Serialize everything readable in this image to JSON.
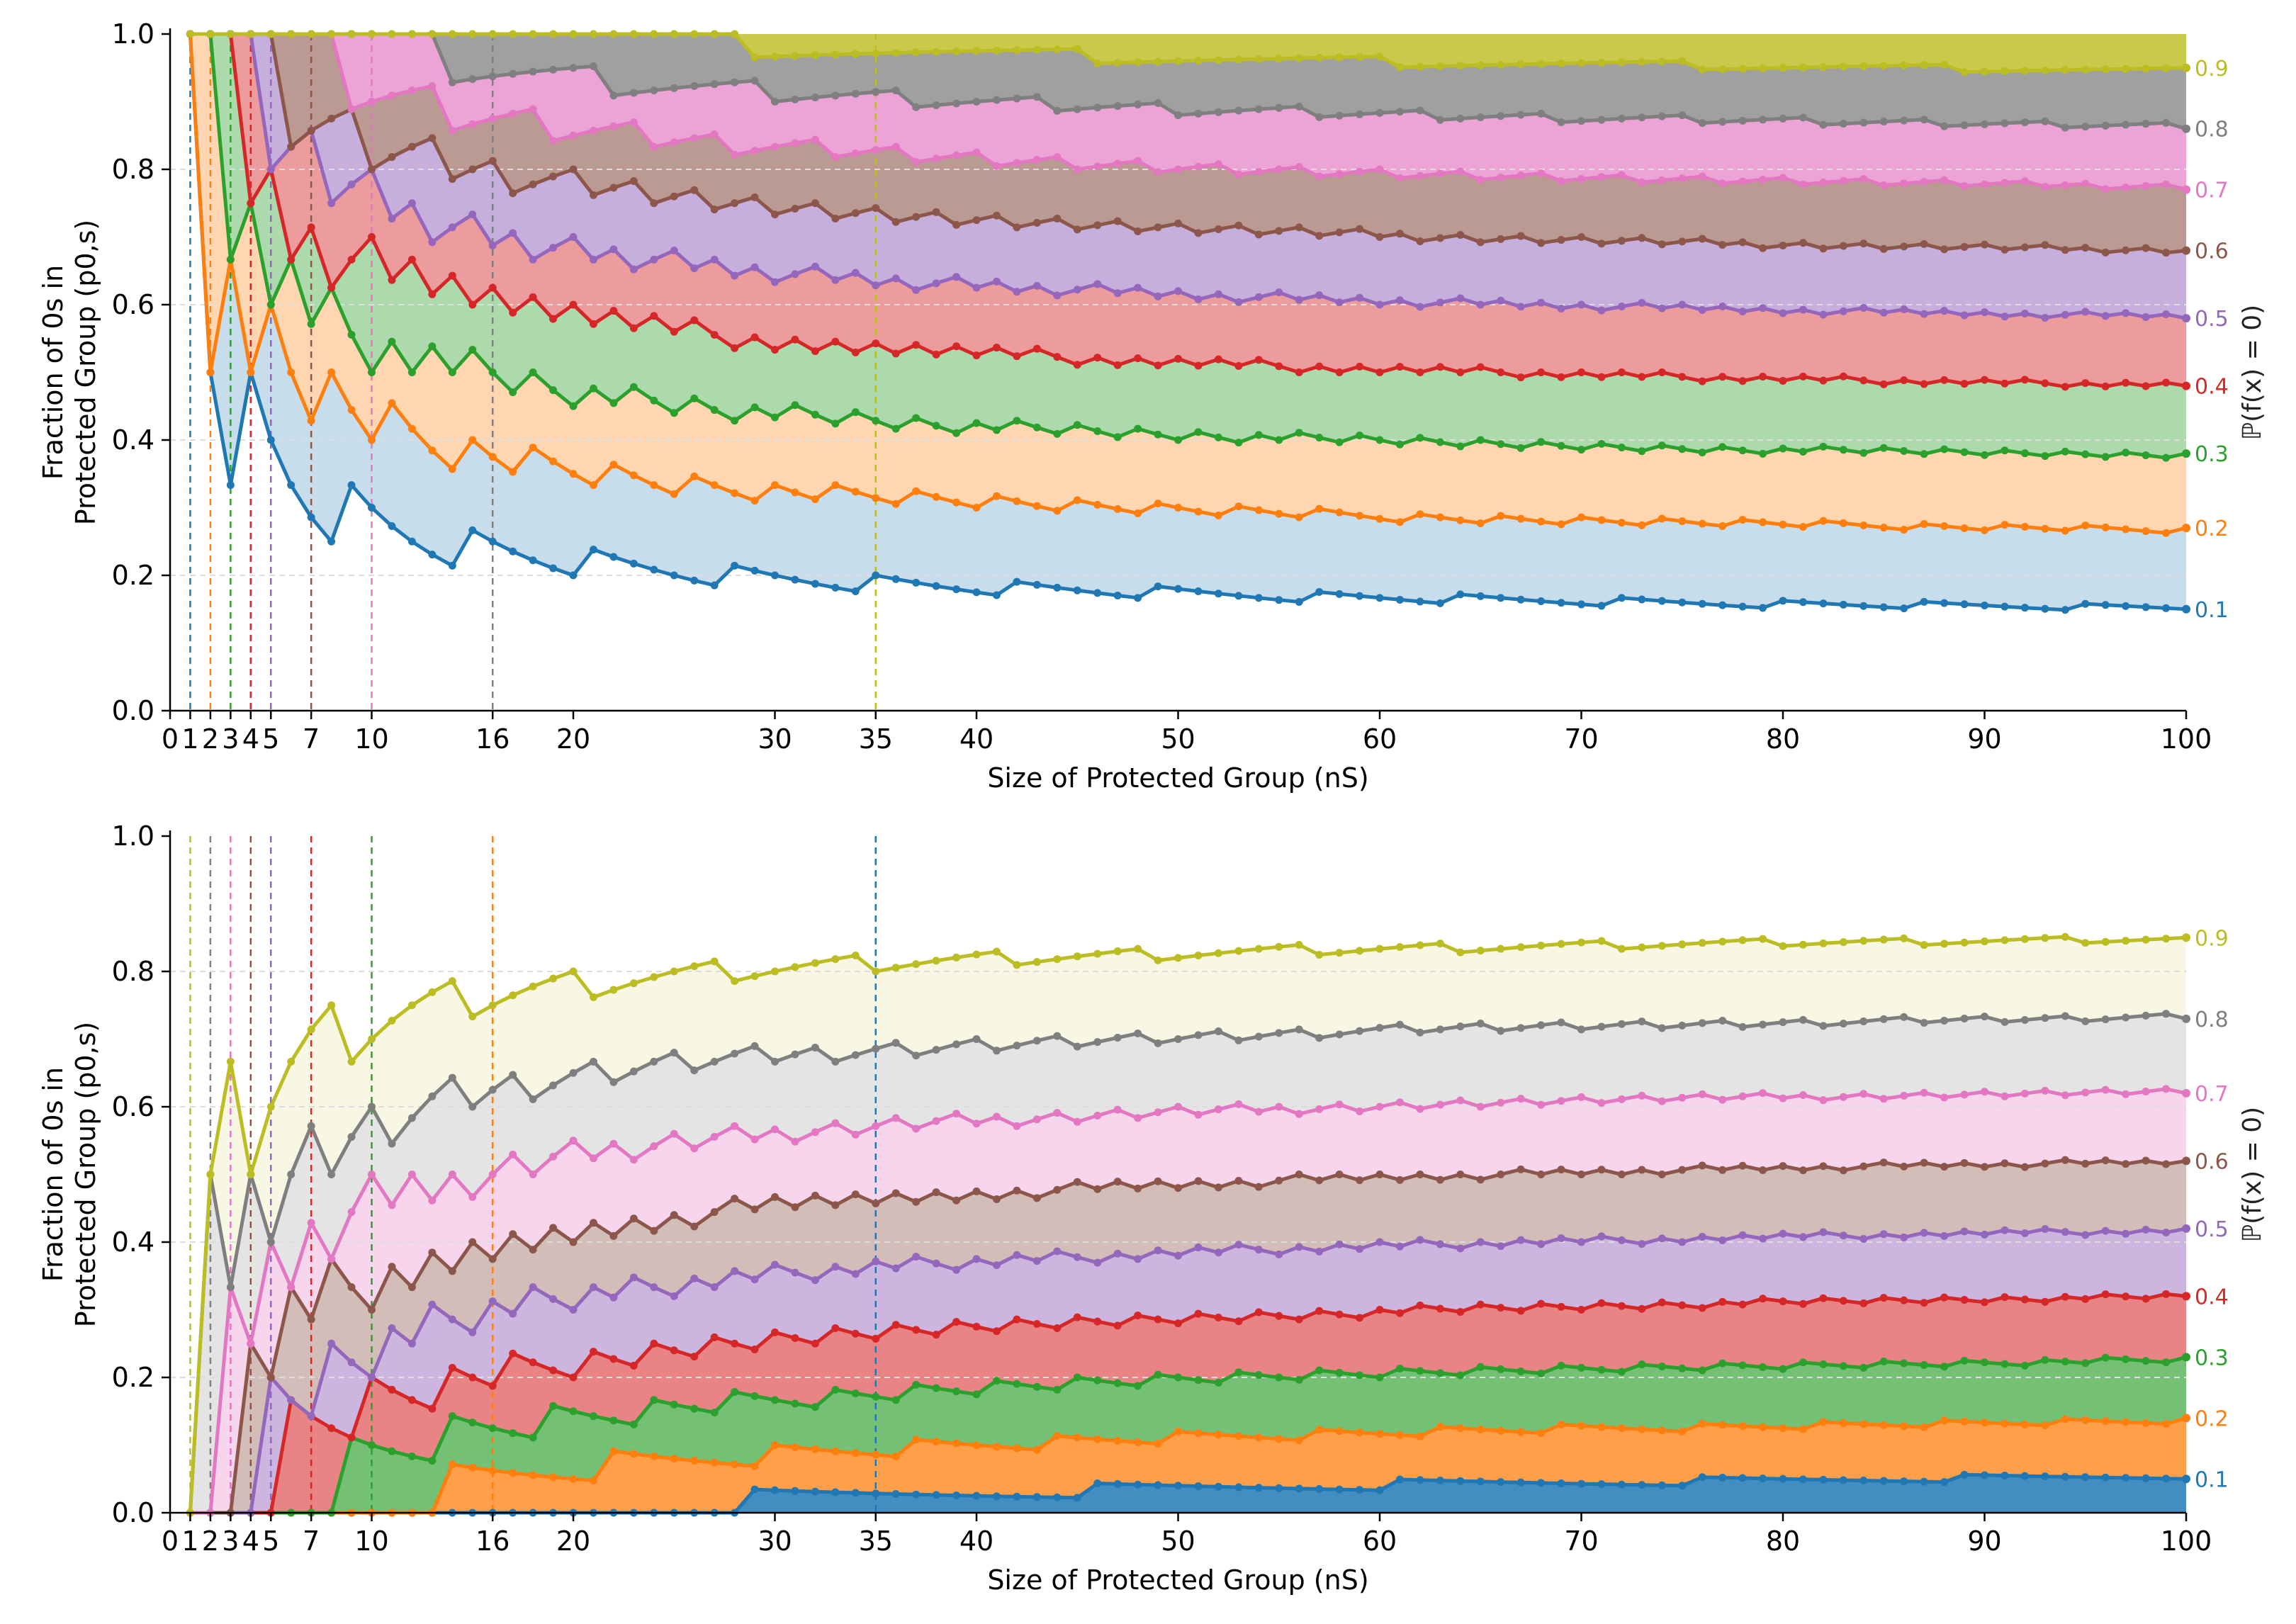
{
  "chart_data": [
    {
      "type": "area",
      "panel": "top",
      "subtitle": "",
      "ylabel_line1": "Fraction of 0s in",
      "ylabel_line2": "Protected Group (p0,s)",
      "xlabel": "Size of Protected Group (nS)",
      "right_axis_label": "ℙ(f(x) = 0)",
      "xlim": [
        0,
        100
      ],
      "ylim": [
        0,
        1
      ],
      "xticks": [
        "0",
        "1",
        "2",
        "3",
        "4",
        "5",
        "7",
        "10",
        "16",
        "20",
        "30",
        "35",
        "40",
        "50",
        "60",
        "70",
        "80",
        "90",
        "100"
      ],
      "yticks": [
        "0.0",
        "0.2",
        "0.4",
        "0.6",
        "0.8",
        "1.0"
      ],
      "marked_n": [
        1,
        2,
        3,
        4,
        5,
        7,
        10,
        16,
        35
      ],
      "probabilities": [
        "0.1",
        "0.2",
        "0.3",
        "0.4",
        "0.5",
        "0.6",
        "0.7",
        "0.8",
        "0.9"
      ],
      "series_end_values": [
        0.17,
        0.29,
        0.4,
        0.5,
        0.61,
        0.7,
        0.8,
        0.89,
        0.97
      ],
      "ceiling": "1.0"
    },
    {
      "type": "area",
      "panel": "bottom",
      "subtitle": "",
      "ylabel_line1": "Fraction of 0s in",
      "ylabel_line2": "Protected Group (p0,s)",
      "xlabel": "Size of Protected Group (nS)",
      "right_axis_label": "ℙ(f(x) = 0)",
      "xlim": [
        0,
        100
      ],
      "ylim": [
        0,
        1
      ],
      "xticks": [
        "0",
        "1",
        "2",
        "3",
        "4",
        "5",
        "7",
        "10",
        "16",
        "20",
        "30",
        "35",
        "40",
        "50",
        "60",
        "70",
        "80",
        "90",
        "100"
      ],
      "yticks": [
        "0.0",
        "0.2",
        "0.4",
        "0.6",
        "0.8",
        "1.0"
      ],
      "marked_n": [
        1,
        2,
        3,
        4,
        5,
        7,
        10,
        16,
        35
      ],
      "probabilities": [
        "0.1",
        "0.2",
        "0.3",
        "0.4",
        "0.5",
        "0.6",
        "0.7",
        "0.8",
        "0.9"
      ],
      "series_end_values": [
        0.03,
        0.11,
        0.2,
        0.29,
        0.39,
        0.49,
        0.59,
        0.7,
        0.82
      ],
      "floor": "0.0"
    }
  ],
  "colors": [
    "#1f77b4",
    "#ff7f0e",
    "#2ca02c",
    "#d62728",
    "#9467bd",
    "#8c564b",
    "#e377c2",
    "#7f7f7f",
    "#bcbd22"
  ]
}
